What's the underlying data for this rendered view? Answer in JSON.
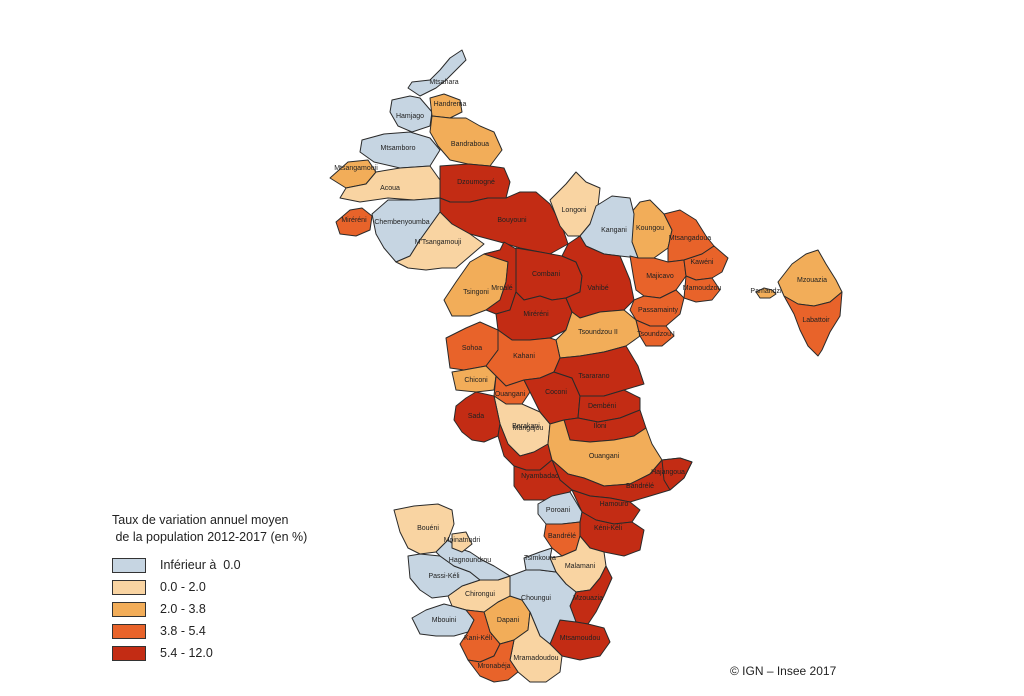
{
  "legend": {
    "title_line1": "Taux de variation annuel moyen",
    "title_line2": " de la population 2012-2017 (en %)",
    "classes": [
      {
        "label": "Inférieur à  0.0",
        "color": "#c6d5e2"
      },
      {
        "label": "0.0 - 2.0",
        "color": "#f9d4a2"
      },
      {
        "label": "2.0 - 3.8",
        "color": "#f2ad59"
      },
      {
        "label": "3.8 - 5.4",
        "color": "#e8632a"
      },
      {
        "label": "5.4 - 12.0",
        "color": "#c32c14"
      }
    ]
  },
  "credit": "© IGN – Insee 2017",
  "communes": [
    {
      "name": "Mtsahara",
      "cls": 0
    },
    {
      "name": "Hamjago",
      "cls": 0
    },
    {
      "name": "Handrema",
      "cls": 2
    },
    {
      "name": "Mtsamboro",
      "cls": 0
    },
    {
      "name": "Bandraboua",
      "cls": 2
    },
    {
      "name": "Mtsangamouji",
      "cls": 2
    },
    {
      "name": "Acoua",
      "cls": 1
    },
    {
      "name": "Dzoumogné",
      "cls": 4
    },
    {
      "name": "Bouyouni",
      "cls": 4
    },
    {
      "name": "Longoni",
      "cls": 1
    },
    {
      "name": "Koungou",
      "cls": 2
    },
    {
      "name": "Kangani",
      "cls": 0
    },
    {
      "name": "Mtsangadoua",
      "cls": 3
    },
    {
      "name": "Miréréni",
      "cls": 3
    },
    {
      "name": "Chembenyoumba",
      "cls": 0
    },
    {
      "name": "M'Tsangamouji",
      "cls": 1
    },
    {
      "name": "Tsingoni",
      "cls": 2
    },
    {
      "name": "Mroalé",
      "cls": 4
    },
    {
      "name": "Combani",
      "cls": 4
    },
    {
      "name": "Miréréni",
      "cls": 4
    },
    {
      "name": "Vahibé",
      "cls": 4
    },
    {
      "name": "Majicavo",
      "cls": 3
    },
    {
      "name": "Kawéni",
      "cls": 3
    },
    {
      "name": "Mamoudzou",
      "cls": 3
    },
    {
      "name": "Passamainty",
      "cls": 3
    },
    {
      "name": "Tsoundzou II",
      "cls": 2
    },
    {
      "name": "Tsoundzou I",
      "cls": 3
    },
    {
      "name": "Sohoa",
      "cls": 3
    },
    {
      "name": "Kahani",
      "cls": 3
    },
    {
      "name": "Chiconi",
      "cls": 2
    },
    {
      "name": "Ouangani",
      "cls": 3
    },
    {
      "name": "Barakani",
      "cls": 1
    },
    {
      "name": "Coconi",
      "cls": 4
    },
    {
      "name": "Tsararano",
      "cls": 4
    },
    {
      "name": "Dembéni",
      "cls": 4
    },
    {
      "name": "Iloni",
      "cls": 4
    },
    {
      "name": "Sada",
      "cls": 4
    },
    {
      "name": "Mangajou",
      "cls": 4
    },
    {
      "name": "Ouangani",
      "cls": 2
    },
    {
      "name": "Bandrélé",
      "cls": 4
    },
    {
      "name": "Hajangoua",
      "cls": 4
    },
    {
      "name": "Hamouro",
      "cls": 4
    },
    {
      "name": "Nyambadao",
      "cls": 4
    },
    {
      "name": "Poroani",
      "cls": 0
    },
    {
      "name": "Kéni-Kéli",
      "cls": 4
    },
    {
      "name": "Bandrélé",
      "cls": 3
    },
    {
      "name": "Malamani",
      "cls": 1
    },
    {
      "name": "Mzouazia",
      "cls": 4
    },
    {
      "name": "Mtsamoudou",
      "cls": 4
    },
    {
      "name": "Dapani",
      "cls": 2
    },
    {
      "name": "Choungui",
      "cls": 0
    },
    {
      "name": "Tsimkoura",
      "cls": 0
    },
    {
      "name": "Chirongui",
      "cls": 1
    },
    {
      "name": "Mramadoudou",
      "cls": 1
    },
    {
      "name": "Mbouini",
      "cls": 0
    },
    {
      "name": "Kani-Kéli",
      "cls": 3
    },
    {
      "name": "Mronabéja",
      "cls": 3
    },
    {
      "name": "Passi-Kéli",
      "cls": 0
    },
    {
      "name": "Bouéni",
      "cls": 1
    },
    {
      "name": "Hagnoundrou",
      "cls": 0
    },
    {
      "name": "Moinatrindri",
      "cls": 1
    },
    {
      "name": "Mzouazia",
      "cls": 2
    },
    {
      "name": "Labattoir",
      "cls": 3
    },
    {
      "name": "Pamandzi",
      "cls": 2
    },
    {
      "name": "Dzaoudzi",
      "cls": 0
    }
  ]
}
